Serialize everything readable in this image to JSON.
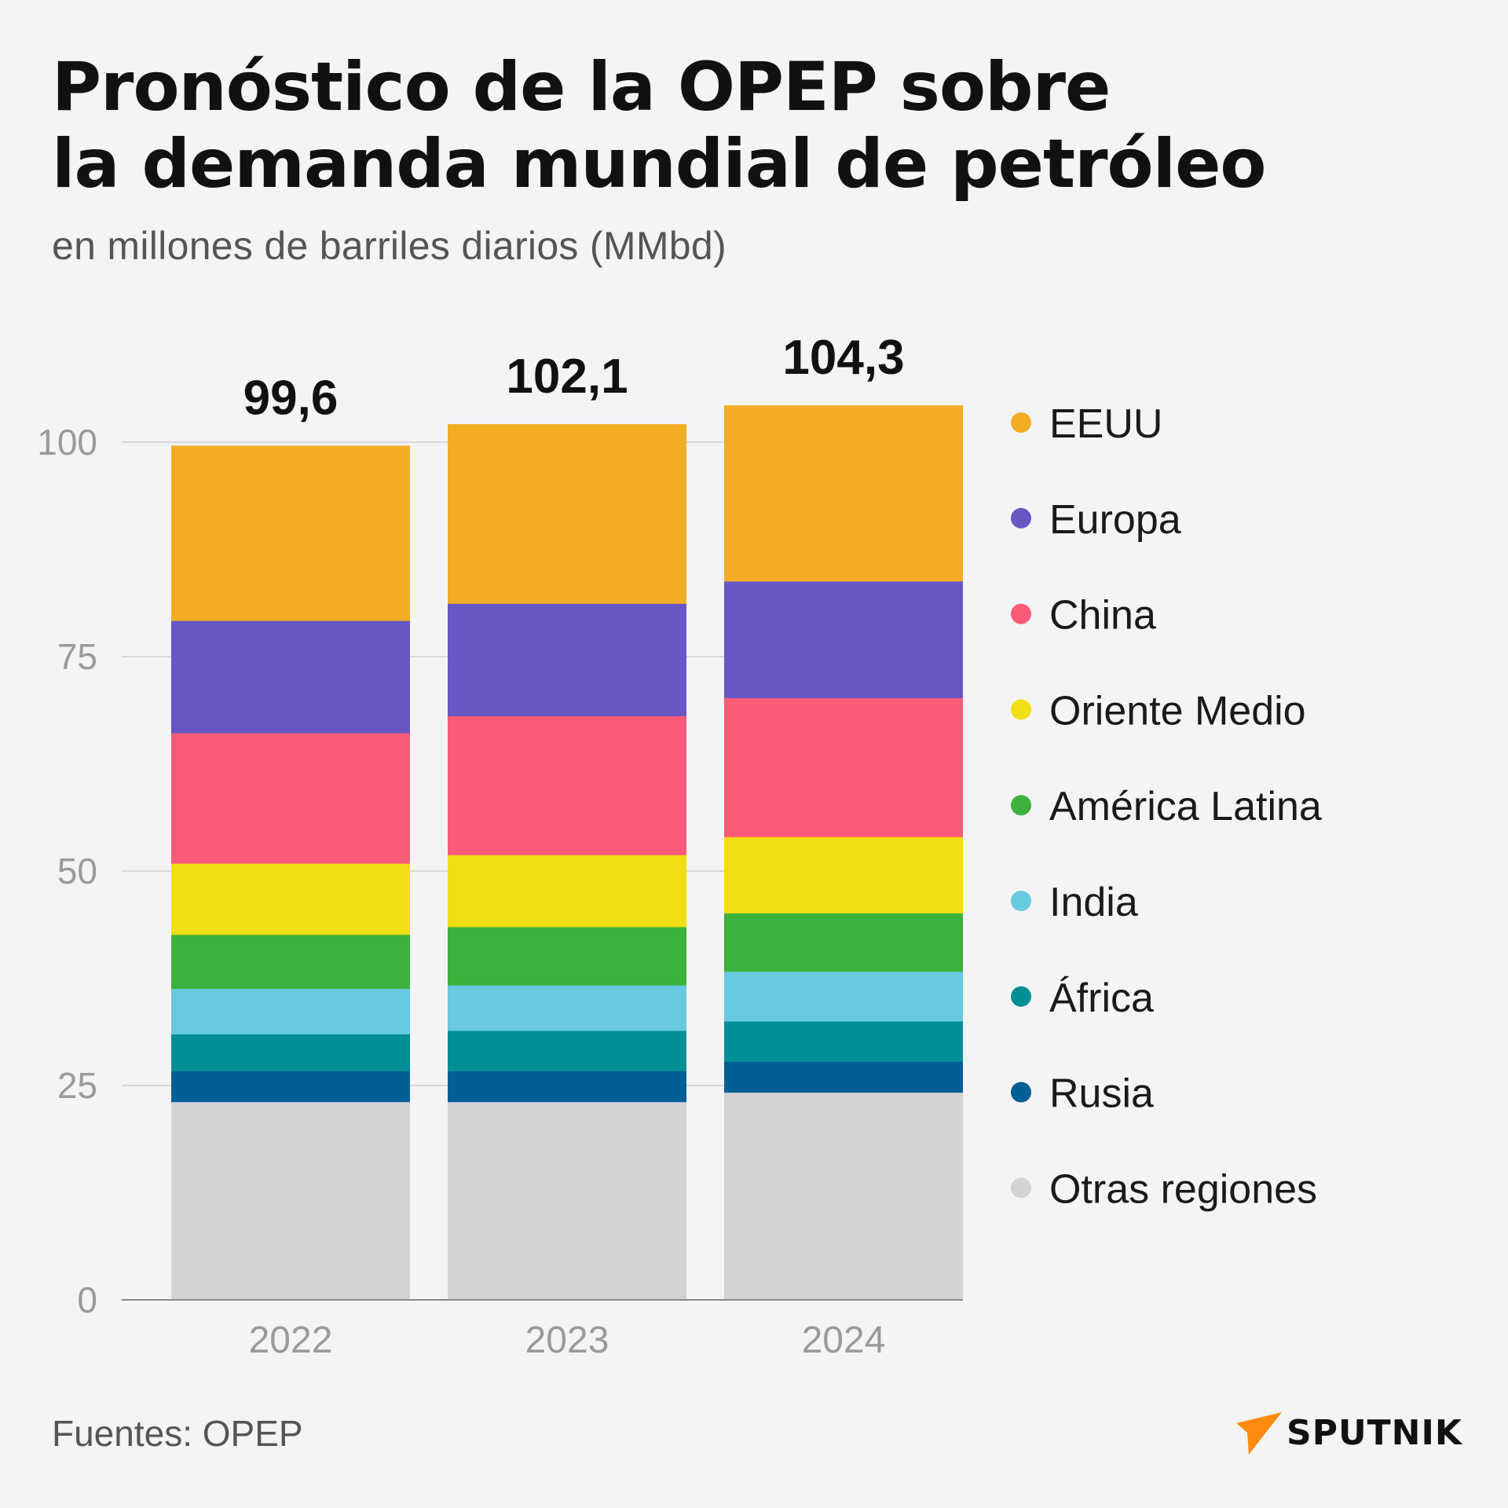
{
  "title_lines": [
    "Pronóstico de la OPEP sobre",
    "la demanda mundial de petróleo"
  ],
  "subtitle": "en millones de barriles diarios (MMbd)",
  "source": "Fuentes: OPEP",
  "brand": "SPUTNIK",
  "colors": {
    "EEUU": "#f2ad24",
    "Europa": "#6856c4",
    "China": "#f95b78",
    "Oriente Medio": "#f1de14",
    "América Latina": "#3cb13b",
    "India": "#67cadf",
    "África": "#008f94",
    "Rusia": "#005f94",
    "Otras regiones": "#d3d3d6",
    "logo": "#ff8a10",
    "grid": "#d8d8da",
    "axis": "#8a8a8a"
  },
  "chart_data": {
    "type": "bar",
    "stacked": true,
    "title": "Pronóstico de la OPEP sobre la demanda mundial de petróleo",
    "ylabel": "en millones de barriles diarios (MMbd)",
    "xlabel": "",
    "categories": [
      "2022",
      "2023",
      "2024"
    ],
    "totals": [
      99.6,
      102.1,
      104.3
    ],
    "total_labels": [
      "99,6",
      "102,1",
      "104,3"
    ],
    "ylim": [
      0,
      105
    ],
    "yticks": [
      0,
      25,
      50,
      75,
      100
    ],
    "legend_position": "right",
    "series": [
      {
        "name": "Otras regiones",
        "values": [
          23.1,
          23.1,
          24.2
        ]
      },
      {
        "name": "Rusia",
        "values": [
          3.6,
          3.6,
          3.6
        ]
      },
      {
        "name": "África",
        "values": [
          4.3,
          4.7,
          4.7
        ]
      },
      {
        "name": "India",
        "values": [
          5.3,
          5.3,
          5.8
        ]
      },
      {
        "name": "América Latina",
        "values": [
          6.3,
          6.8,
          6.8
        ]
      },
      {
        "name": "Oriente Medio",
        "values": [
          8.3,
          8.4,
          8.9
        ]
      },
      {
        "name": "China",
        "values": [
          15.2,
          16.2,
          16.2
        ]
      },
      {
        "name": "Europa",
        "values": [
          13.1,
          13.1,
          13.6
        ]
      },
      {
        "name": "EEUU",
        "values": [
          20.4,
          20.9,
          20.5
        ]
      }
    ],
    "legend_order": [
      "EEUU",
      "Europa",
      "China",
      "Oriente Medio",
      "América Latina",
      "India",
      "África",
      "Rusia",
      "Otras regiones"
    ]
  }
}
